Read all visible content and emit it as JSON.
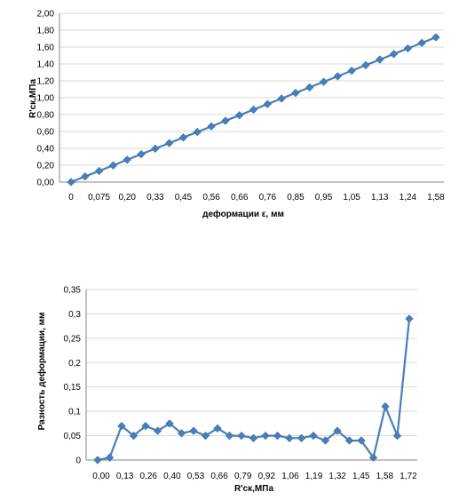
{
  "chart_data": [
    {
      "type": "line",
      "xlabel": "деформации ε, мм",
      "ylabel": "R'ск,МПа",
      "ylim": [
        0,
        2
      ],
      "yticks": [
        "0,00",
        "0,20",
        "0,40",
        "0,60",
        "0,80",
        "1,00",
        "1,20",
        "1,40",
        "1,60",
        "1,80",
        "2,00"
      ],
      "xtick_labels": [
        "0",
        "0,075",
        "0,20",
        "0,33",
        "0,45",
        "0,56",
        "0,66",
        "0,76",
        "0,85",
        "0,95",
        "1,05",
        "1,13",
        "1,24",
        "1,58"
      ],
      "grid": true,
      "marker": "diamond",
      "color": "#4a7ebb",
      "series": [
        {
          "values": [
            0.0,
            0.066,
            0.132,
            0.198,
            0.264,
            0.33,
            0.396,
            0.462,
            0.528,
            0.594,
            0.66,
            0.726,
            0.792,
            0.858,
            0.924,
            0.99,
            1.056,
            1.122,
            1.188,
            1.254,
            1.32,
            1.386,
            1.452,
            1.518,
            1.584,
            1.65,
            1.716
          ]
        }
      ]
    },
    {
      "type": "line",
      "xlabel": "R'ск,МПа",
      "ylabel": "Разность деформации, мм",
      "ylim": [
        0,
        0.35
      ],
      "yticks": [
        "0",
        "0,05",
        "0,1",
        "0,15",
        "0,2",
        "0,25",
        "0,3",
        "0,35"
      ],
      "xtick_labels": [
        "0,00",
        "0,13",
        "0,26",
        "0,40",
        "0,53",
        "0,66",
        "0,79",
        "0,92",
        "1,06",
        "1,19",
        "1,32",
        "1,45",
        "1,58",
        "1,72"
      ],
      "grid": true,
      "marker": "diamond",
      "color": "#4a7ebb",
      "series": [
        {
          "values": [
            0,
            0.005,
            0.07,
            0.05,
            0.07,
            0.06,
            0.075,
            0.055,
            0.06,
            0.05,
            0.065,
            0.05,
            0.05,
            0.045,
            0.05,
            0.05,
            0.045,
            0.045,
            0.05,
            0.04,
            0.06,
            0.04,
            0.04,
            0.005,
            0.11,
            0.05,
            0.29
          ]
        }
      ]
    }
  ]
}
